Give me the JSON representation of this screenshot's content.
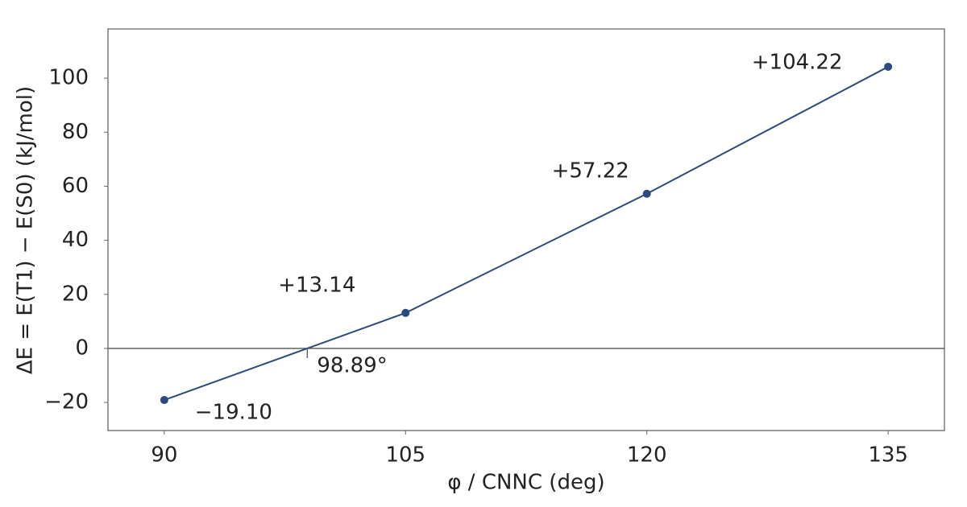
{
  "chart_data": {
    "type": "line",
    "x_label": "φ / CNNC (deg)",
    "y_label": "ΔE = E(T1) − E(S0) (kJ/mol)",
    "x": [
      90,
      105,
      120,
      135
    ],
    "values": [
      -19.1,
      13.14,
      57.22,
      104.22
    ],
    "value_labels": [
      "−19.10",
      "+13.14",
      "+57.22",
      "+104.22"
    ],
    "color": "#2b4a7d",
    "xlim": [
      86.5,
      138.5
    ],
    "ylim": [
      -30.4,
      118.2
    ],
    "xticks": [
      90,
      105,
      120,
      135
    ],
    "yticks": [
      {
        "value": -20,
        "label": "−20"
      },
      0,
      20,
      40,
      60,
      80,
      100
    ],
    "hline": 0,
    "zero_crossing": {
      "value": 98.89,
      "label": "98.89°"
    },
    "grid": false
  }
}
